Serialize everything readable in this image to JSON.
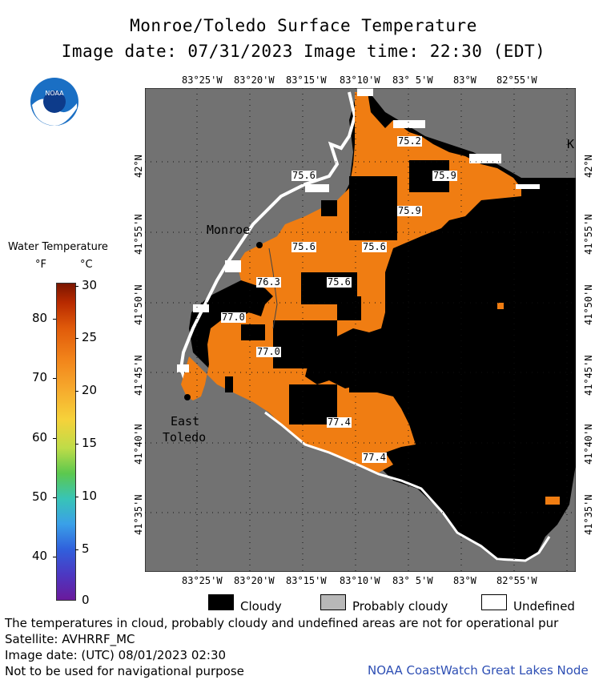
{
  "title": "Monroe/Toledo Surface Temperature",
  "subtitle": "Image date: 07/31/2023    Image time: 22:30 (EDT)",
  "logo_text": "NOAA",
  "lon_ticks": [
    "83°25'W",
    "83°20'W",
    "83°15'W",
    "83°10'W",
    "83° 5'W",
    "83°W",
    "82°55'W"
  ],
  "lat_ticks": [
    "42°N",
    "41°55'N",
    "41°50'N",
    "41°45'N",
    "41°40'N",
    "41°35'N"
  ],
  "legend": {
    "title": "Water Temperature",
    "unit_f": "°F",
    "unit_c": "°C",
    "f_ticks": [
      "80",
      "70",
      "60",
      "50",
      "40"
    ],
    "c_ticks": [
      "30",
      "25",
      "20",
      "15",
      "10",
      "5",
      "0"
    ]
  },
  "places": {
    "monroe": "Monroe",
    "east_toledo_1": "East",
    "east_toledo_2": "Toledo",
    "k": "K"
  },
  "temps": [
    "75.2",
    "75.6",
    "75.9",
    "75.9",
    "75.6",
    "75.6",
    "76.3",
    "75.6",
    "77.0",
    "77.0",
    "77.4",
    "77.4"
  ],
  "key": {
    "cloudy": "Cloudy",
    "probably_cloudy": "Probably cloudy",
    "undefined": "Undefined"
  },
  "colors": {
    "water": "#f07d12",
    "cloud": "#000000",
    "land": "#727272",
    "undefined": "#ffffff"
  },
  "footer": {
    "line1": "The temperatures in cloud, probably cloudy and undefined areas are not for operational pur",
    "line2": "Satellite: AVHRRF_MC",
    "line3": "Image date: (UTC) 08/01/2023  02:30",
    "line4": "Not to be used for navigational purpose",
    "credit": "NOAA CoastWatch Great Lakes Node"
  }
}
